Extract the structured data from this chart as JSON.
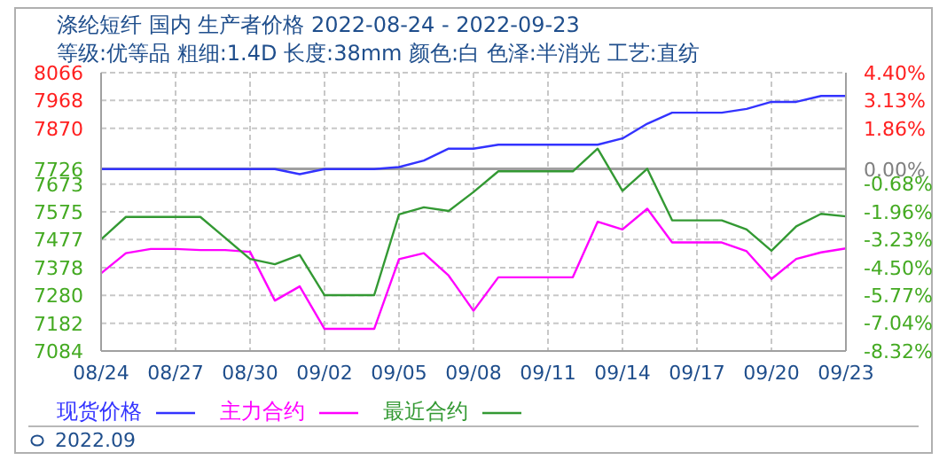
{
  "chart_data": {
    "type": "line",
    "title": "涤纶短纤 国内 生产者价格 2022-08-24 - 2022-09-23",
    "subtitle": "等级:优等品 粗细:1.4D 长度:38mm 颜色:白 色泽:半消光 工艺:直纺",
    "categories": [
      "08/24",
      null,
      null,
      "08/27",
      null,
      null,
      "08/30",
      null,
      null,
      "09/02",
      null,
      null,
      "09/05",
      null,
      null,
      "09/08",
      null,
      null,
      "09/11",
      null,
      null,
      "09/14",
      null,
      null,
      "09/17",
      null,
      null,
      "09/20",
      null,
      null,
      "09/23"
    ],
    "series": [
      {
        "name": "现货价格",
        "color": "#3333ff",
        "values": [
          7726,
          7726,
          7726,
          7726,
          7726,
          7726,
          7726,
          7726,
          7708,
          7726,
          7726,
          7726,
          7733,
          7756,
          7798,
          7798,
          7812,
          7812,
          7812,
          7812,
          7812,
          7834,
          7886,
          7925,
          7925,
          7925,
          7938,
          7963,
          7963,
          7984,
          7984
        ]
      },
      {
        "name": "主力合约",
        "color": "#ff00ff",
        "values": [
          7358,
          7429,
          7444,
          7444,
          7440,
          7440,
          7434,
          7262,
          7312,
          7162,
          7162,
          7162,
          7408,
          7429,
          7350,
          7226,
          7344,
          7344,
          7344,
          7344,
          7540,
          7513,
          7586,
          7467,
          7467,
          7467,
          7436,
          7338,
          7409,
          7432,
          7446
        ]
      },
      {
        "name": "最近合约",
        "color": "#339933",
        "values": [
          7478,
          7557,
          7557,
          7557,
          7557,
          7483,
          7409,
          7390,
          7423,
          7281,
          7281,
          7281,
          7566,
          7591,
          7578,
          7645,
          7718,
          7718,
          7718,
          7718,
          7798,
          7649,
          7727,
          7545,
          7545,
          7545,
          7513,
          7438,
          7524,
          7568,
          7559
        ]
      }
    ],
    "ylim": [
      7084,
      8066
    ],
    "yticks": [
      7084,
      7182,
      7280,
      7378,
      7477,
      7575,
      7673,
      7726,
      7870,
      7968,
      8066
    ],
    "y2lim": [
      -8.32,
      4.4
    ],
    "y2ticks": [
      {
        "value": -8.32,
        "label": "-8.32%"
      },
      {
        "value": -7.04,
        "label": "-7.04%"
      },
      {
        "value": -5.77,
        "label": "-5.77%"
      },
      {
        "value": -4.5,
        "label": "-4.50%"
      },
      {
        "value": -3.23,
        "label": "-3.23%"
      },
      {
        "value": -1.96,
        "label": "-1.96%"
      },
      {
        "value": -0.68,
        "label": "-0.68%"
      },
      {
        "value": 0,
        "label": "0.00%"
      },
      {
        "value": 1.86,
        "label": "1.86%"
      },
      {
        "value": 3.13,
        "label": "3.13%"
      },
      {
        "value": 4.4,
        "label": "4.40%"
      }
    ],
    "ref_lines": [
      {
        "axis": "y2",
        "value": 0,
        "color": "#a0a0a0"
      }
    ],
    "grid": true,
    "legend": "bottom",
    "marker": "none",
    "line_style": "solid",
    "annotations": [
      "2022.09"
    ]
  }
}
